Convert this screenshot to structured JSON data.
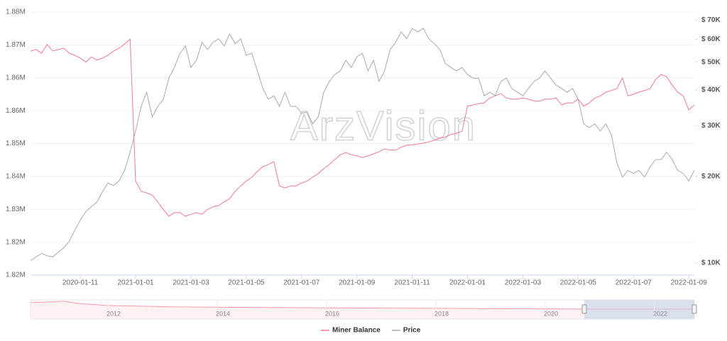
{
  "chart_data": {
    "type": "line",
    "watermark": "ArzVision",
    "categories": [
      null,
      null,
      null,
      null,
      null,
      null,
      null,
      null,
      null,
      "2020-01-11",
      null,
      null,
      null,
      null,
      null,
      null,
      null,
      null,
      null,
      "2021-01-01",
      null,
      null,
      null,
      null,
      null,
      null,
      null,
      null,
      null,
      "2021-01-03",
      null,
      null,
      null,
      null,
      null,
      null,
      null,
      null,
      null,
      "2021-01-05",
      null,
      null,
      null,
      null,
      null,
      null,
      null,
      null,
      null,
      "2021-01-07",
      null,
      null,
      null,
      null,
      null,
      null,
      null,
      null,
      null,
      "2021-01-09",
      null,
      null,
      null,
      null,
      null,
      null,
      null,
      null,
      null,
      "2021-01-11",
      null,
      null,
      null,
      null,
      null,
      null,
      null,
      null,
      null,
      "2022-01-01",
      null,
      null,
      null,
      null,
      null,
      null,
      null,
      null,
      null,
      "2022-01-03",
      null,
      null,
      null,
      null,
      null,
      null,
      null,
      null,
      null,
      "2022-01-05",
      null,
      null,
      null,
      null,
      null,
      null,
      null,
      null,
      null,
      "2022-01-07",
      null,
      null,
      null,
      null,
      null,
      null,
      null,
      null,
      null,
      "2022-01-09",
      null
    ],
    "series": [
      {
        "name": "Miner Balance",
        "color": "#f07a8c",
        "values": [
          1870500,
          1870900,
          1870000,
          1872100,
          1870500,
          1870900,
          1871200,
          1870000,
          1869500,
          1868800,
          1867800,
          1869100,
          1868300,
          1868800,
          1869500,
          1870500,
          1871200,
          1872200,
          1873400,
          1838900,
          1836400,
          1836000,
          1835500,
          1833800,
          1832000,
          1830300,
          1831200,
          1831200,
          1830300,
          1830800,
          1831200,
          1830800,
          1832000,
          1832600,
          1832900,
          1833800,
          1834600,
          1836400,
          1837700,
          1838900,
          1839800,
          1841200,
          1842400,
          1842900,
          1843600,
          1837700,
          1837200,
          1837700,
          1837700,
          1838400,
          1838900,
          1839800,
          1840700,
          1841900,
          1842900,
          1844100,
          1845300,
          1845800,
          1845300,
          1845000,
          1844600,
          1845000,
          1845500,
          1846000,
          1846700,
          1846400,
          1846400,
          1847100,
          1847600,
          1847700,
          1847900,
          1848100,
          1848400,
          1848800,
          1849300,
          1849600,
          1850200,
          1850500,
          1851000,
          1857100,
          1857400,
          1857700,
          1857900,
          1859100,
          1859600,
          1860200,
          1859100,
          1858800,
          1858800,
          1859100,
          1858800,
          1858400,
          1858300,
          1858800,
          1858800,
          1859100,
          1857400,
          1857900,
          1857900,
          1858800,
          1857100,
          1857900,
          1859100,
          1859600,
          1860500,
          1860900,
          1861400,
          1864000,
          1859600,
          1860000,
          1860500,
          1860900,
          1861400,
          1863600,
          1864800,
          1864300,
          1862200,
          1860500,
          1859600,
          1856200,
          1857400
        ]
      },
      {
        "name": "Price",
        "color": "#aaaaaa",
        "axis": "y2",
        "values": [
          10200,
          10500,
          10800,
          10600,
          10500,
          10900,
          11300,
          11900,
          13000,
          14100,
          15100,
          15700,
          16300,
          17700,
          19000,
          18600,
          19300,
          21000,
          24300,
          28800,
          35100,
          39300,
          32200,
          35100,
          37100,
          44000,
          47900,
          53700,
          56900,
          47900,
          50800,
          58600,
          55300,
          58600,
          60300,
          56900,
          62700,
          57900,
          60300,
          52800,
          53700,
          46600,
          40500,
          37100,
          38200,
          35100,
          39300,
          35100,
          35100,
          33200,
          33600,
          30500,
          32200,
          39300,
          42800,
          45300,
          46600,
          50800,
          47900,
          52200,
          53700,
          46600,
          50800,
          42800,
          46600,
          55300,
          58600,
          63700,
          60300,
          65600,
          63700,
          65600,
          60300,
          57900,
          55300,
          49400,
          47900,
          46600,
          47900,
          45300,
          44000,
          44000,
          38200,
          39300,
          38200,
          42800,
          44000,
          40500,
          39300,
          38200,
          40500,
          42800,
          44000,
          46600,
          44000,
          41600,
          40500,
          39300,
          40500,
          37100,
          30500,
          29600,
          30500,
          28800,
          30500,
          28000,
          22300,
          19900,
          21000,
          20500,
          21000,
          19900,
          21600,
          22900,
          22900,
          24300,
          22900,
          21000,
          20500,
          19300,
          21000
        ]
      }
    ],
    "ylim": [
      1816000,
      1880000
    ],
    "yticks": [
      {
        "value": 1816000,
        "label": "1.82M"
      },
      {
        "value": 1824000,
        "label": "1.82M"
      },
      {
        "value": 1832000,
        "label": "1.83M"
      },
      {
        "value": 1840000,
        "label": "1.84M"
      },
      {
        "value": 1848000,
        "label": "1.85M"
      },
      {
        "value": 1856000,
        "label": "1.86M"
      },
      {
        "value": 1864000,
        "label": "1.86M"
      },
      {
        "value": 1872000,
        "label": "1.87M"
      },
      {
        "value": 1880000,
        "label": "1.88M"
      }
    ],
    "y2lim": [
      9080,
      74700
    ],
    "y2log": true,
    "y2ticks": [
      {
        "value": 10000,
        "label": "$ 10K"
      },
      {
        "value": 20000,
        "label": "$ 20K"
      },
      {
        "value": 30000,
        "label": "$ 30K"
      },
      {
        "value": 40000,
        "label": "$ 40K"
      },
      {
        "value": 50000,
        "label": "$ 50K"
      },
      {
        "value": 60000,
        "label": "$ 60K"
      },
      {
        "value": 70000,
        "label": "$ 70K"
      }
    ],
    "grid": true,
    "legend": "bottom",
    "navigator": {
      "labels": [
        "2012",
        "2014",
        "2016",
        "2018",
        "2020",
        "2022"
      ]
    }
  }
}
